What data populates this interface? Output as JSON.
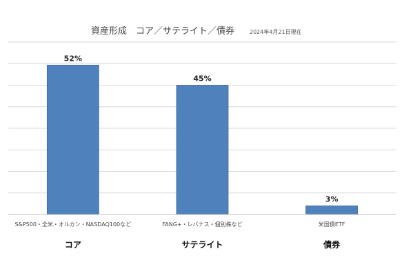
{
  "chart_data": {
    "type": "bar",
    "title": "資産形成　コア／サテライト／債券",
    "subtitle": "2024年4月21日現在",
    "categories": [
      "S&P500・全米・オルカン・NASDAQ100など",
      "FANG+・レバナス・個別株など",
      "米国債ETF"
    ],
    "group_labels": [
      "コア",
      "サテライト",
      "債券"
    ],
    "values": [
      52,
      45,
      3
    ],
    "value_labels": [
      "52%",
      "45%",
      "3%"
    ],
    "unit": "%",
    "ylim": [
      0,
      60
    ],
    "grid": true,
    "legend": "none",
    "xlabel": "",
    "ylabel": ""
  },
  "colors": {
    "bar": "#4f81bd",
    "bar_border": "#3f6a9e",
    "grid": "#d9d9d9",
    "axis": "#bfbfbf"
  }
}
